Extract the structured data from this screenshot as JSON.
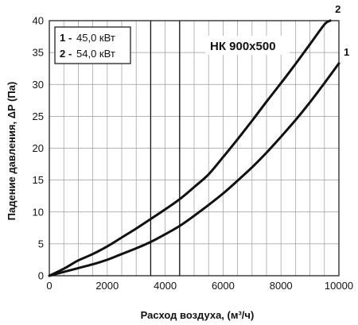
{
  "chart_data": {
    "type": "line",
    "title": "НК 900х500",
    "xlabel": "Расход воздуха, (м³/ч)",
    "ylabel": "Падение давления, ΔP (Па)",
    "xlim": [
      0,
      10000
    ],
    "ylim": [
      0,
      40
    ],
    "x_ticks": [
      "0",
      "2000",
      "4000",
      "6000",
      "8000",
      "10000"
    ],
    "y_ticks": [
      "0",
      "5",
      "10",
      "15",
      "20",
      "25",
      "30",
      "35",
      "40"
    ],
    "vertical_markers": [
      3500,
      4500
    ],
    "grid": true,
    "legend_position": "top-left",
    "legend": [
      {
        "num": "1",
        "dash": "-",
        "text": "45,0 кВт"
      },
      {
        "num": "2",
        "dash": "-",
        "text": "54,0 кВт"
      }
    ],
    "series": [
      {
        "name": "1",
        "x": [
          0,
          500,
          1000,
          1500,
          2000,
          2500,
          3000,
          3500,
          4000,
          4500,
          5000,
          5500,
          6000,
          6500,
          7000,
          7500,
          8000,
          8500,
          9000,
          9500,
          10000
        ],
        "values": [
          0,
          0.6,
          1.2,
          1.8,
          2.5,
          3.4,
          4.3,
          5.3,
          6.5,
          7.8,
          9.4,
          11.1,
          12.9,
          14.9,
          17.0,
          19.3,
          21.8,
          24.4,
          27.2,
          30.2,
          33.3
        ]
      },
      {
        "name": "2",
        "x": [
          0,
          500,
          1000,
          1500,
          2000,
          2500,
          3000,
          3500,
          4000,
          4500,
          5000,
          5500,
          6000,
          6500,
          7000,
          7500,
          8000,
          8500,
          9000,
          9500,
          9700
        ],
        "values": [
          0,
          1.1,
          2.4,
          3.4,
          4.6,
          6.0,
          7.4,
          8.9,
          10.4,
          12.0,
          13.9,
          15.9,
          18.6,
          21.4,
          24.3,
          27.3,
          30.2,
          33.2,
          36.3,
          39.4,
          40.0
        ]
      }
    ]
  }
}
